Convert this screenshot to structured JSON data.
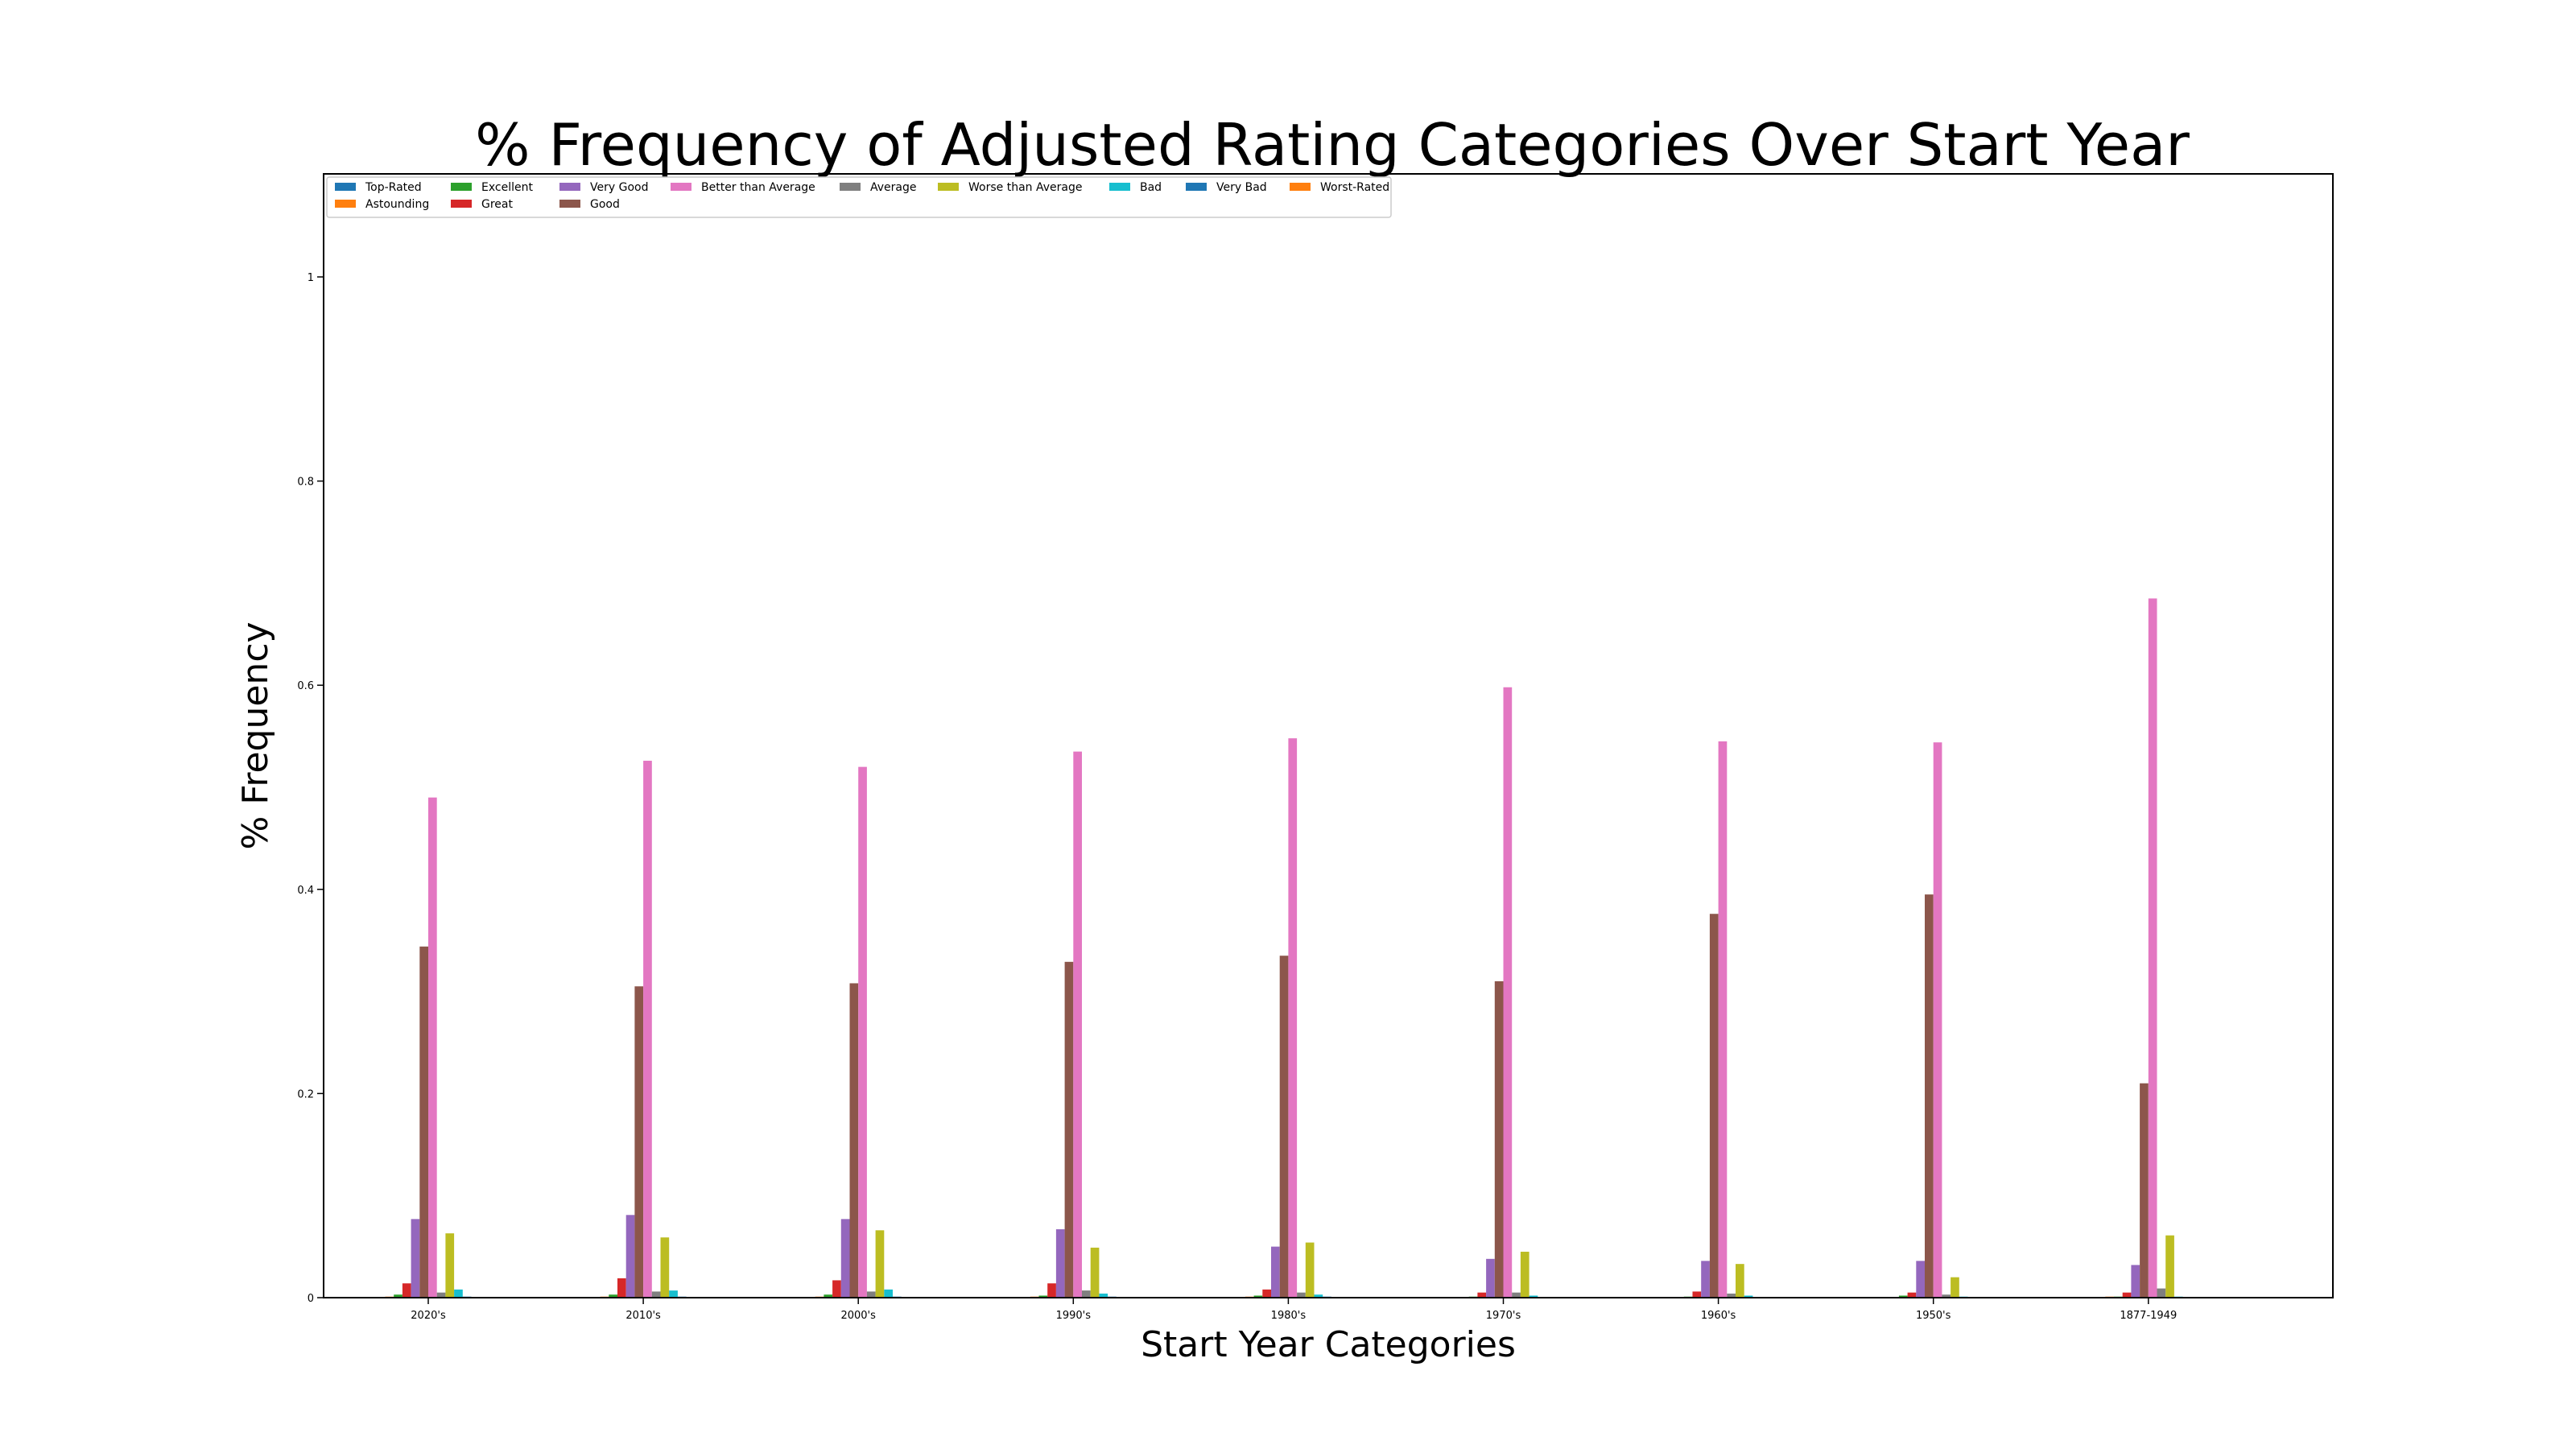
{
  "chart_data": {
    "type": "bar",
    "title": "% Frequency of Adjusted Rating Categories Over Start Year",
    "xlabel": "Start Year Categories",
    "ylabel": "% Frequency",
    "ylim": [
      0,
      1.1
    ],
    "yticks": [
      0,
      0.2,
      0.4,
      0.6,
      0.8,
      1
    ],
    "ytick_labels": [
      "0",
      "0.2",
      "0.4",
      "0.6",
      "0.8",
      "1"
    ],
    "grid": false,
    "legend_position": "top-left",
    "categories": [
      "2020's",
      "2010's",
      "2000's",
      "1990's",
      "1980's",
      "1970's",
      "1960's",
      "1950's",
      "1877-1949"
    ],
    "series": [
      {
        "name": "Top-Rated",
        "color": "#1f77b4",
        "values": [
          0,
          0,
          0,
          0,
          0,
          0,
          0,
          0,
          0
        ]
      },
      {
        "name": "Astounding",
        "color": "#ff7f0e",
        "values": [
          0.001,
          0.001,
          0.001,
          0.001,
          0.001,
          0,
          0,
          0,
          0.001
        ]
      },
      {
        "name": "Excellent",
        "color": "#2ca02c",
        "values": [
          0.003,
          0.003,
          0.003,
          0.002,
          0.002,
          0.001,
          0.001,
          0.002,
          0.001
        ]
      },
      {
        "name": "Great",
        "color": "#d62728",
        "values": [
          0.014,
          0.019,
          0.017,
          0.014,
          0.008,
          0.005,
          0.006,
          0.005,
          0.005
        ]
      },
      {
        "name": "Very Good",
        "color": "#9467bd",
        "values": [
          0.077,
          0.081,
          0.077,
          0.067,
          0.05,
          0.038,
          0.036,
          0.036,
          0.032
        ]
      },
      {
        "name": "Good",
        "color": "#8c564b",
        "values": [
          0.344,
          0.305,
          0.308,
          0.329,
          0.335,
          0.31,
          0.376,
          0.395,
          0.21
        ]
      },
      {
        "name": "Better than Average",
        "color": "#e377c2",
        "values": [
          0.49,
          0.526,
          0.52,
          0.535,
          0.548,
          0.598,
          0.545,
          0.544,
          0.685
        ]
      },
      {
        "name": "Average",
        "color": "#7f7f7f",
        "values": [
          0.005,
          0.006,
          0.006,
          0.007,
          0.005,
          0.005,
          0.004,
          0.003,
          0.009
        ]
      },
      {
        "name": "Worse than Average",
        "color": "#bcbd22",
        "values": [
          0.063,
          0.059,
          0.066,
          0.049,
          0.054,
          0.045,
          0.033,
          0.02,
          0.061
        ]
      },
      {
        "name": "Bad",
        "color": "#17becf",
        "values": [
          0.008,
          0.007,
          0.008,
          0.004,
          0.003,
          0.002,
          0.002,
          0.001,
          0.001
        ]
      },
      {
        "name": "Very Bad",
        "color": "#1f77b4",
        "values": [
          0.001,
          0.001,
          0.001,
          0.001,
          0.001,
          0,
          0,
          0,
          0
        ]
      },
      {
        "name": "Worst-Rated",
        "color": "#ff7f0e",
        "values": [
          0,
          0,
          0,
          0,
          0,
          0,
          0,
          0,
          0
        ]
      }
    ]
  }
}
